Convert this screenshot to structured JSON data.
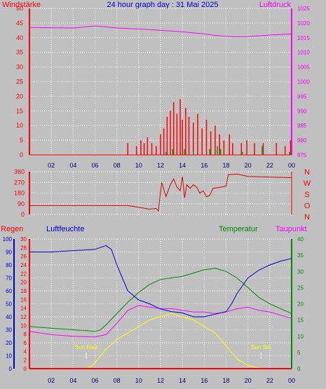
{
  "title": "24 hour graph day : 31 Mai 2025",
  "colors": {
    "background": "#c0c0c0",
    "grid": "#ffffff",
    "wind": "#ff0000",
    "gust": "#00a000",
    "pressure": "#ff00ff",
    "direction": "#dd0000",
    "humidity": "#0000cc",
    "temperature": "#008800",
    "dewpoint": "#ff00ff",
    "sun": "#ffff00",
    "rain": "#ff0000"
  },
  "chart_data": [
    {
      "type": "bar",
      "left_label": "Windstärke",
      "right_label": "Luftdruck",
      "x_ticks": [
        "02",
        "04",
        "06",
        "08",
        "10",
        "12",
        "14",
        "16",
        "18",
        "20",
        "22",
        "00"
      ],
      "y_left_ticks": [
        "0",
        "5",
        "10",
        "15",
        "20",
        "25",
        "30",
        "35",
        "40",
        "45",
        "50"
      ],
      "y_right_ticks": [
        "975",
        "980",
        "985",
        "990",
        "995",
        "1000",
        "1005",
        "1010",
        "1015",
        "1020",
        "1025"
      ],
      "ylim_left": [
        0,
        50
      ],
      "ylim_right": [
        975,
        1025
      ],
      "pressure_series": {
        "hours": [
          0,
          2,
          4,
          6,
          7,
          8,
          10,
          12,
          14,
          16,
          17,
          18,
          19,
          20,
          22,
          24
        ],
        "values": [
          1018.5,
          1018.4,
          1018.3,
          1019.0,
          1018.7,
          1018.3,
          1018.0,
          1017.5,
          1017.0,
          1016.3,
          1015.8,
          1015.5,
          1015.3,
          1015.4,
          1015.9,
          1016.3
        ]
      },
      "wind_series": {
        "hours": [
          9.0,
          9.8,
          10.2,
          10.5,
          10.8,
          11.2,
          11.6,
          12.0,
          12.3,
          12.6,
          12.9,
          13.2,
          13.5,
          13.8,
          14.0,
          14.3,
          14.6,
          15.0,
          15.4,
          15.8,
          16.2,
          16.6,
          17.0,
          17.4,
          17.8,
          18.3,
          18.6,
          19.4,
          19.9,
          20.6,
          21.4,
          22.6,
          23.4,
          23.9
        ],
        "values": [
          4,
          3,
          5,
          4,
          6,
          4,
          3,
          7,
          9,
          13,
          15,
          18,
          14,
          19,
          12,
          16,
          13,
          11,
          14,
          9,
          12,
          8,
          10,
          7,
          5,
          7,
          4,
          4,
          5,
          4,
          4,
          4,
          3,
          5
        ]
      },
      "gust_series": {
        "hours": [
          12.5,
          13.1,
          14.2,
          15.0,
          16.5,
          17.2,
          17.5,
          19.5,
          21.3,
          23.8
        ],
        "values": [
          1,
          2,
          2,
          1,
          2,
          3,
          2,
          1,
          3,
          1
        ]
      }
    },
    {
      "type": "line",
      "right_label": "N W S O N",
      "right_letters": [
        "N",
        "W",
        "S",
        "O",
        "N"
      ],
      "y_ticks": [
        "0",
        "90",
        "180",
        "270",
        "360"
      ],
      "ylim": [
        0,
        360
      ],
      "direction_series": {
        "hours": [
          0,
          8,
          9.0,
          10.0,
          11.0,
          11.6,
          11.8,
          12.1,
          12.5,
          12.7,
          12.9,
          13.2,
          13.5,
          13.8,
          14.0,
          14.2,
          14.4,
          14.7,
          15.0,
          15.3,
          15.6,
          15.9,
          16.2,
          16.5,
          16.8,
          17.5,
          18.0,
          18.2,
          19.0,
          20.0,
          22.0,
          24.0
        ],
        "values": [
          75,
          75,
          75,
          60,
          45,
          50,
          30,
          270,
          150,
          200,
          250,
          300,
          230,
          200,
          320,
          140,
          250,
          220,
          250,
          230,
          180,
          200,
          150,
          160,
          220,
          230,
          240,
          335,
          340,
          320,
          315,
          310
        ]
      }
    },
    {
      "type": "line",
      "labels": [
        "Regen",
        "Luftfeuchte",
        "Temperatur",
        "Taupunkt"
      ],
      "x_ticks": [
        "02",
        "04",
        "06",
        "08",
        "10",
        "12",
        "14",
        "16",
        "18",
        "20",
        "22",
        "00"
      ],
      "y_humidity_ticks": [
        "0",
        "10",
        "20",
        "30",
        "40",
        "50",
        "60",
        "70",
        "80",
        "90",
        "100"
      ],
      "y_rain_ticks": [
        "0",
        "2",
        "4",
        "6",
        "8",
        "10",
        "12",
        "14",
        "16",
        "18",
        "20",
        "22",
        "24",
        "26",
        "28",
        "30"
      ],
      "y_temp_ticks": [
        "0",
        "5",
        "10",
        "15",
        "20",
        "25",
        "30",
        "35",
        "40"
      ],
      "ylim_humidity": [
        0,
        100
      ],
      "ylim_rain": [
        0,
        30
      ],
      "ylim_temp": [
        0,
        40
      ],
      "annotations": {
        "sunrise": "Sun Rise",
        "sunset": "Sun Set"
      },
      "sunrise_hour": 5.2,
      "sunset_hour": 21.2,
      "humidity_series": {
        "hours": [
          0,
          2,
          4,
          6,
          7,
          7.5,
          8,
          9,
          10,
          11,
          12,
          13,
          14,
          15,
          16,
          17,
          18,
          18.5,
          19,
          20,
          21,
          22,
          23,
          24
        ],
        "values": [
          90,
          90,
          91,
          92,
          95,
          92,
          80,
          60,
          53,
          50,
          46,
          44,
          43,
          40,
          40,
          42,
          44,
          50,
          58,
          70,
          76,
          80,
          83,
          85
        ]
      },
      "temperature_series": {
        "hours": [
          0,
          2,
          4,
          5,
          6,
          6.5,
          7,
          8,
          9,
          10,
          11,
          12,
          13,
          14,
          15,
          16,
          17,
          18,
          19,
          20,
          21,
          22,
          23,
          24
        ],
        "values": [
          13,
          12.5,
          12,
          11.8,
          11.5,
          12,
          13.5,
          17,
          20.5,
          23.5,
          26,
          27.5,
          28,
          28.5,
          29.5,
          30.5,
          31,
          30,
          28,
          25,
          22,
          20,
          18.5,
          17
        ]
      },
      "dewpoint_series": {
        "hours": [
          0,
          2,
          4,
          6,
          7,
          8,
          9,
          10,
          11,
          12,
          13,
          14,
          15,
          16,
          17,
          18,
          19,
          20,
          21,
          22,
          23,
          24
        ],
        "values": [
          11.5,
          10.5,
          10,
          9.8,
          10.5,
          14,
          18,
          19.5,
          19,
          18.5,
          18.5,
          18,
          17.5,
          17.5,
          17,
          17.5,
          18.5,
          19,
          18,
          17.5,
          16.5,
          15.5
        ]
      },
      "sun_series": {
        "hours": [
          0,
          5.2,
          5.8,
          6.5,
          7.0,
          8.0,
          9.0,
          10.0,
          11.0,
          12.0,
          13.0,
          14.0,
          15.0,
          16.0,
          17.0,
          18.0,
          19.0,
          20.0,
          21.2,
          24
        ],
        "values": [
          0,
          0,
          1,
          4,
          6,
          9,
          11,
          13,
          15,
          16,
          17,
          16,
          15,
          13,
          11,
          7,
          3,
          1,
          0,
          0
        ]
      },
      "rain_series": {
        "hours": [
          0,
          24
        ],
        "values": [
          0,
          0
        ]
      }
    }
  ]
}
